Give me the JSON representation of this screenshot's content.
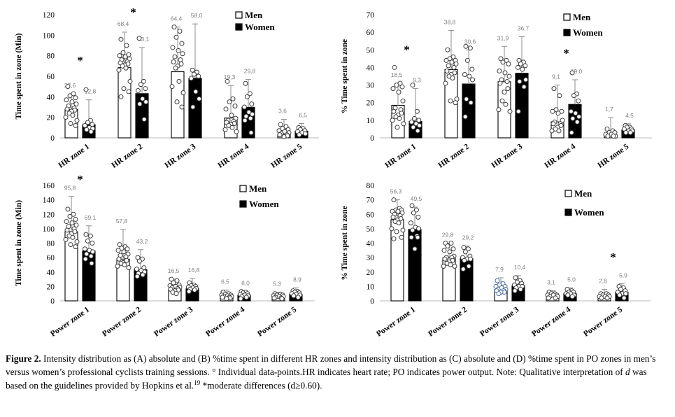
{
  "legend": {
    "men_label": "Men",
    "women_label": "Women"
  },
  "colors": {
    "men_fill": "#ffffff",
    "women_fill": "#000000",
    "bar_border": "#000000",
    "error_bar": "#8c8c8c",
    "value_label": "#7f7f7f",
    "point_stroke": "#3d3d3d",
    "point_fill": "#ffffff",
    "special_point_stroke": "#4d6fa6",
    "axis_line": "#c6c6c6",
    "asterisk": "#000000",
    "text": "#000000"
  },
  "chart_data": [
    {
      "panel": "A",
      "type": "bar",
      "title": "",
      "xlabel": "",
      "ylabel": "Time spent in zone (Min)",
      "ylim": [
        0,
        120
      ],
      "ytick_step": 20,
      "grid": false,
      "legend_position": "top-right",
      "categories": [
        "HR zone 1",
        "HR zone 2",
        "HR zone 3",
        "HR zone 4",
        "HR zone 5"
      ],
      "series": [
        {
          "name": "Men",
          "values": [
            27.6,
            68.4,
            64.4,
            19.3,
            3.6
          ],
          "labels": [
            "27,6",
            "68,4",
            "64,4",
            "19,3",
            "3,6"
          ],
          "error_top": [
            43,
            103,
            108,
            51,
            18
          ],
          "points": [
            [
              50,
              43,
              41,
              39,
              37,
              35,
              33,
              31,
              29,
              28,
              27,
              26,
              24,
              22,
              20,
              17,
              14,
              12
            ],
            [
              96,
              90,
              83,
              81,
              80,
              79,
              77,
              76,
              74,
              73,
              72,
              71,
              70,
              68,
              66,
              55,
              48,
              45,
              40
            ],
            [
              108,
              104,
              98,
              92,
              88,
              85,
              82,
              79,
              76,
              74,
              72,
              70,
              68,
              55,
              50,
              44,
              35,
              30
            ],
            [
              55,
              38,
              35,
              31,
              28,
              22,
              19,
              17,
              16,
              15,
              14,
              13,
              12,
              10,
              8,
              6
            ],
            [
              13,
              11,
              9,
              8,
              7,
              6,
              5,
              4,
              3,
              3,
              2,
              1
            ]
          ]
        },
        {
          "name": "Women",
          "values": [
            12.8,
            43.1,
            58.0,
            29.8,
            6.5
          ],
          "labels": [
            "12,8",
            "43,1",
            "58,0",
            "29,8",
            "6,5"
          ],
          "error_top": [
            37,
            88,
            111,
            57,
            14
          ],
          "points": [
            [
              47,
              17,
              15,
              13,
              12,
              10,
              9,
              8,
              6
            ],
            [
              97,
              55,
              52,
              48,
              46,
              38,
              35,
              33,
              18
            ],
            [
              66,
              64,
              62,
              60,
              58,
              45,
              38,
              30
            ],
            [
              53,
              43,
              40,
              33,
              30,
              25,
              23,
              21,
              19,
              17,
              5
            ],
            [
              10,
              9,
              8,
              7,
              6,
              5,
              4,
              3
            ]
          ]
        }
      ],
      "asterisks": [
        {
          "cat": 0,
          "y": 75
        },
        {
          "cat": 1,
          "y": 122
        }
      ]
    },
    {
      "panel": "B",
      "type": "bar",
      "title": "",
      "xlabel": "",
      "ylabel": "% Time spent in zone",
      "ylim": [
        0,
        70
      ],
      "ytick_step": 10,
      "grid": false,
      "legend_position": "top-right",
      "categories": [
        "HR zone 1",
        "HR zone 2",
        "HR zone 3",
        "HR zone 4",
        "HR zone 5"
      ],
      "series": [
        {
          "name": "Men",
          "values": [
            18.5,
            38.8,
            31.9,
            9.1,
            1.7
          ],
          "labels": [
            "18,5",
            "38,8",
            "31,9",
            "9,1",
            "1,7"
          ],
          "error_top": [
            31,
            61,
            52,
            30,
            11.5
          ],
          "points": [
            [
              40,
              31,
              30,
              29,
              28,
              26,
              21,
              17,
              16,
              15,
              14,
              13,
              12,
              11,
              10,
              8,
              6
            ],
            [
              50,
              46,
              45,
              44,
              44,
              43,
              42,
              41,
              40,
              38,
              37,
              36,
              35,
              34,
              31,
              22,
              21,
              20
            ],
            [
              45,
              44,
              43,
              42,
              38,
              37,
              35,
              33,
              32,
              31,
              28,
              26,
              21,
              19,
              16,
              15
            ],
            [
              28,
              24,
              16,
              15,
              15,
              14,
              10,
              9,
              8,
              8,
              7,
              6,
              5,
              4,
              4
            ],
            [
              5,
              4,
              3,
              3,
              2,
              2,
              1,
              1,
              1
            ]
          ]
        },
        {
          "name": "Women",
          "values": [
            9.3,
            30.6,
            36.7,
            19.0,
            4.5
          ],
          "labels": [
            "9,3",
            "30,6",
            "36,7",
            "19,0",
            "4,5"
          ],
          "error_top": [
            28,
            50,
            57.5,
            33,
            8
          ],
          "points": [
            [
              30,
              15,
              11,
              10,
              9,
              8,
              7,
              6,
              4
            ],
            [
              52,
              51,
              44,
              39,
              36,
              35,
              33,
              22,
              20,
              12
            ],
            [
              44,
              43,
              42,
              41,
              40,
              39,
              33,
              32,
              29,
              15
            ],
            [
              37,
              25,
              24,
              21,
              15,
              14,
              12,
              11,
              9,
              3
            ],
            [
              7,
              6,
              6,
              5,
              5,
              4,
              4,
              3,
              3
            ]
          ]
        }
      ],
      "asterisks": [
        {
          "cat": 0,
          "y": 50
        },
        {
          "cat": 3,
          "y": 48
        }
      ]
    },
    {
      "panel": "C",
      "type": "bar",
      "title": "",
      "xlabel": "",
      "ylabel": "Time spent in zone (Min)",
      "ylim": [
        0,
        160
      ],
      "ytick_step": 20,
      "grid": false,
      "legend_position": "top-right",
      "categories": [
        "Power zone 1",
        "Power zone 2",
        "Power zone 3",
        "Power zone 4",
        "Power zone 5"
      ],
      "series": [
        {
          "name": "Men",
          "values": [
            95.8,
            57.8,
            16.5,
            6.5,
            5.3
          ],
          "labels": [
            "95,8",
            "57,8",
            "16,5",
            "6,5",
            "5,3"
          ],
          "error_top": [
            145,
            99,
            30,
            15,
            12
          ],
          "points": [
            [
              127,
              120,
              117,
              113,
              110,
              108,
              105,
              103,
              100,
              98,
              96,
              93,
              90,
              88,
              85,
              82,
              78,
              75
            ],
            [
              78,
              75,
              73,
              72,
              70,
              68,
              65,
              63,
              61,
              58,
              56,
              53,
              52,
              50,
              48,
              46
            ],
            [
              30,
              28,
              25,
              22,
              21,
              20,
              19,
              18,
              17,
              16,
              15,
              14,
              12,
              10
            ],
            [
              12,
              10,
              9,
              8,
              8,
              7,
              6,
              6,
              5,
              5,
              4,
              3
            ],
            [
              10,
              9,
              8,
              8,
              7,
              6,
              6,
              5,
              4,
              4,
              3
            ]
          ]
        },
        {
          "name": "Women",
          "values": [
            69.1,
            43.2,
            16.8,
            8.0,
            8.9
          ],
          "labels": [
            "69,1",
            "43,2",
            "16,8",
            "8,0",
            "8,9"
          ],
          "error_top": [
            104,
            71,
            31,
            13,
            18
          ],
          "points": [
            [
              92,
              90,
              83,
              80,
              72,
              70,
              68,
              65,
              62,
              58,
              52
            ],
            [
              60,
              58,
              55,
              46,
              44,
              42,
              40,
              38,
              36,
              34
            ],
            [
              25,
              22,
              21,
              20,
              19,
              18,
              17,
              16,
              15,
              13
            ],
            [
              13,
              12,
              11,
              10,
              9,
              8,
              7,
              6,
              5,
              3
            ],
            [
              14,
              13,
              12,
              11,
              10,
              9,
              8,
              7,
              5
            ]
          ]
        }
      ],
      "asterisks": [
        {
          "cat": 0,
          "y": 168
        }
      ]
    },
    {
      "panel": "D",
      "type": "bar",
      "title": "",
      "xlabel": "",
      "ylabel": "% Time spent in zone",
      "ylim": [
        0,
        80
      ],
      "ytick_step": 10,
      "grid": false,
      "legend_position": "top-right",
      "categories": [
        "Power zone 1",
        "Power zone 2",
        "Power zone 3",
        "Power zone 4",
        "Power zone 5"
      ],
      "series": [
        {
          "name": "Men",
          "values": [
            56.3,
            29.8,
            7.9,
            3.1,
            2.8
          ],
          "labels": [
            "56,3",
            "29,8",
            "7,9",
            "3,1",
            "2,8"
          ],
          "error_top": [
            70,
            40,
            16,
            7,
            8
          ],
          "point_color_overrides": {
            "2": "#4d6fa6"
          },
          "points": [
            [
              70,
              64,
              63,
              63,
              62,
              62,
              61,
              60,
              59,
              58,
              57,
              56,
              55,
              54,
              50,
              49,
              48,
              44,
              43
            ],
            [
              40,
              40,
              38,
              36,
              35,
              34,
              31,
              30,
              30,
              29,
              28,
              27,
              26,
              25,
              24,
              24
            ],
            [
              14,
              12,
              11,
              10,
              10,
              9,
              8,
              8,
              7,
              7,
              6,
              6,
              5
            ],
            [
              6,
              5,
              5,
              4,
              4,
              4,
              3,
              3,
              2,
              2
            ],
            [
              5,
              5,
              4,
              4,
              3,
              3,
              3,
              2,
              2
            ]
          ]
        },
        {
          "name": "Women",
          "values": [
            49.5,
            29.2,
            10.4,
            5.0,
            5.9
          ],
          "labels": [
            "49,5",
            "29,2",
            "10,4",
            "5,0",
            "5,9"
          ],
          "error_top": [
            65,
            38,
            17.5,
            9,
            12
          ],
          "points": [
            [
              66,
              63,
              61,
              58,
              54,
              51,
              50,
              49,
              45,
              44,
              44,
              36
            ],
            [
              37,
              36,
              34,
              31,
              30,
              29,
              29,
              28,
              24,
              22
            ],
            [
              16,
              14,
              13,
              12,
              11,
              10,
              10,
              9,
              8,
              7
            ],
            [
              8,
              7,
              6,
              6,
              5,
              5,
              4,
              4,
              3
            ],
            [
              10,
              9,
              8,
              7,
              6,
              5,
              5,
              4,
              2
            ]
          ]
        }
      ],
      "asterisks": [
        {
          "cat": 4,
          "y": 30
        }
      ]
    }
  ],
  "caption": {
    "segments": [
      {
        "text": "Figure 2.",
        "style": "bold"
      },
      {
        "text": " Intensity distribution as (A) absolute and (B) %time spent in different HR zones and intensity distribution as (C) absolute and (D) %time spent in PO zones in men’s versus women’s professional cyclists training sessions. ° Individual data-points.HR indicates heart rate; PO indicates power output. Note: Qualitative interpretation of ",
        "style": "normal"
      },
      {
        "text": "d",
        "style": "italic"
      },
      {
        "text": " was based on the guidelines provided by Hopkins et al.",
        "style": "normal"
      },
      {
        "text": "19",
        "style": "sup"
      },
      {
        "text": " *moderate differences (d≥0.60).",
        "style": "normal"
      }
    ]
  }
}
